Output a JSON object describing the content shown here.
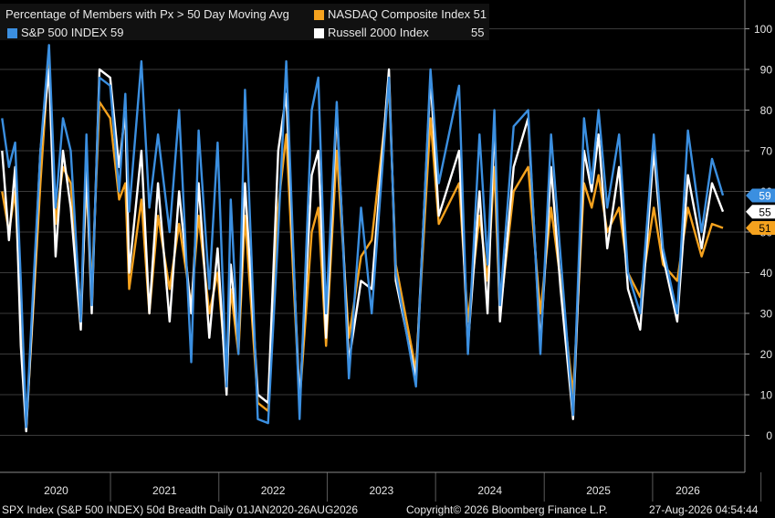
{
  "chart_data": {
    "type": "line",
    "title": "Percentage of Members with Px > 50 Day Moving Avg",
    "x_range": [
      "2020-01-01",
      "2026-08-26"
    ],
    "x_ticks": [
      "2020",
      "2021",
      "2022",
      "2023",
      "2024",
      "2025",
      "2026"
    ],
    "ylim": [
      -10,
      108
    ],
    "y_ticks": [
      "0",
      "10",
      "20",
      "30",
      "40",
      "50",
      "60",
      "70",
      "80",
      "90",
      "100"
    ],
    "grid": true,
    "legend_position": "top-left",
    "series": [
      {
        "name": "S&P 500 INDEX",
        "color": "#3b8fe0",
        "last_value": "59",
        "points": [
          [
            "2020-01-02",
            78
          ],
          [
            "2020-01-25",
            66
          ],
          [
            "2020-02-15",
            72
          ],
          [
            "2020-03-05",
            38
          ],
          [
            "2020-03-23",
            2
          ],
          [
            "2020-04-15",
            35
          ],
          [
            "2020-05-10",
            70
          ],
          [
            "2020-06-08",
            96
          ],
          [
            "2020-06-30",
            56
          ],
          [
            "2020-07-25",
            78
          ],
          [
            "2020-08-20",
            70
          ],
          [
            "2020-09-23",
            28
          ],
          [
            "2020-10-12",
            74
          ],
          [
            "2020-10-30",
            32
          ],
          [
            "2020-11-25",
            88
          ],
          [
            "2020-12-31",
            86
          ],
          [
            "2021-01-30",
            60
          ],
          [
            "2021-02-20",
            84
          ],
          [
            "2021-03-05",
            55
          ],
          [
            "2021-04-15",
            92
          ],
          [
            "2021-05-12",
            56
          ],
          [
            "2021-06-10",
            74
          ],
          [
            "2021-07-19",
            50
          ],
          [
            "2021-08-20",
            80
          ],
          [
            "2021-09-30",
            18
          ],
          [
            "2021-10-25",
            75
          ],
          [
            "2021-11-30",
            36
          ],
          [
            "2021-12-28",
            72
          ],
          [
            "2022-01-27",
            12
          ],
          [
            "2022-02-10",
            58
          ],
          [
            "2022-03-08",
            20
          ],
          [
            "2022-03-30",
            85
          ],
          [
            "2022-05-12",
            4
          ],
          [
            "2022-06-16",
            3
          ],
          [
            "2022-07-20",
            50
          ],
          [
            "2022-08-16",
            92
          ],
          [
            "2022-09-30",
            4
          ],
          [
            "2022-11-10",
            80
          ],
          [
            "2022-12-02",
            88
          ],
          [
            "2022-12-28",
            30
          ],
          [
            "2023-02-02",
            82
          ],
          [
            "2023-03-15",
            14
          ],
          [
            "2023-04-25",
            56
          ],
          [
            "2023-05-31",
            30
          ],
          [
            "2023-07-28",
            88
          ],
          [
            "2023-08-20",
            40
          ],
          [
            "2023-10-27",
            12
          ],
          [
            "2023-12-15",
            90
          ],
          [
            "2024-01-12",
            62
          ],
          [
            "2024-03-20",
            86
          ],
          [
            "2024-04-19",
            20
          ],
          [
            "2024-05-28",
            74
          ],
          [
            "2024-06-24",
            42
          ],
          [
            "2024-07-17",
            80
          ],
          [
            "2024-08-05",
            32
          ],
          [
            "2024-09-20",
            76
          ],
          [
            "2024-11-08",
            80
          ],
          [
            "2024-12-19",
            20
          ],
          [
            "2025-01-24",
            74
          ],
          [
            "2025-02-25",
            44
          ],
          [
            "2025-04-08",
            5
          ],
          [
            "2025-05-15",
            78
          ],
          [
            "2025-06-10",
            62
          ],
          [
            "2025-07-03",
            80
          ],
          [
            "2025-08-01",
            56
          ],
          [
            "2025-09-10",
            74
          ],
          [
            "2025-10-10",
            40
          ],
          [
            "2025-11-20",
            30
          ],
          [
            "2026-01-05",
            74
          ],
          [
            "2026-02-05",
            46
          ],
          [
            "2026-03-25",
            30
          ],
          [
            "2026-04-30",
            75
          ],
          [
            "2026-06-15",
            50
          ],
          [
            "2026-07-20",
            68
          ],
          [
            "2026-08-26",
            59
          ]
        ]
      },
      {
        "name": "NASDAQ Composite Index",
        "color": "#f5a21e",
        "last_value": "51",
        "points": [
          [
            "2020-01-02",
            60
          ],
          [
            "2020-01-25",
            50
          ],
          [
            "2020-02-15",
            60
          ],
          [
            "2020-03-05",
            30
          ],
          [
            "2020-03-23",
            2
          ],
          [
            "2020-04-15",
            30
          ],
          [
            "2020-05-10",
            62
          ],
          [
            "2020-06-08",
            94
          ],
          [
            "2020-06-30",
            52
          ],
          [
            "2020-07-25",
            66
          ],
          [
            "2020-08-20",
            62
          ],
          [
            "2020-09-23",
            30
          ],
          [
            "2020-10-12",
            62
          ],
          [
            "2020-10-30",
            36
          ],
          [
            "2020-11-25",
            82
          ],
          [
            "2020-12-31",
            78
          ],
          [
            "2021-01-30",
            58
          ],
          [
            "2021-02-20",
            62
          ],
          [
            "2021-03-05",
            36
          ],
          [
            "2021-04-15",
            58
          ],
          [
            "2021-05-12",
            30
          ],
          [
            "2021-06-10",
            54
          ],
          [
            "2021-07-19",
            36
          ],
          [
            "2021-08-20",
            52
          ],
          [
            "2021-09-30",
            32
          ],
          [
            "2021-10-25",
            54
          ],
          [
            "2021-11-30",
            30
          ],
          [
            "2021-12-28",
            40
          ],
          [
            "2022-01-27",
            14
          ],
          [
            "2022-02-10",
            36
          ],
          [
            "2022-03-08",
            20
          ],
          [
            "2022-03-30",
            54
          ],
          [
            "2022-05-12",
            8
          ],
          [
            "2022-06-16",
            6
          ],
          [
            "2022-07-20",
            56
          ],
          [
            "2022-08-16",
            74
          ],
          [
            "2022-09-30",
            8
          ],
          [
            "2022-11-10",
            50
          ],
          [
            "2022-12-02",
            56
          ],
          [
            "2022-12-28",
            22
          ],
          [
            "2023-02-02",
            70
          ],
          [
            "2023-03-15",
            24
          ],
          [
            "2023-04-25",
            44
          ],
          [
            "2023-05-31",
            48
          ],
          [
            "2023-07-28",
            86
          ],
          [
            "2023-08-20",
            42
          ],
          [
            "2023-10-27",
            16
          ],
          [
            "2023-12-15",
            78
          ],
          [
            "2024-01-12",
            52
          ],
          [
            "2024-03-20",
            62
          ],
          [
            "2024-04-19",
            28
          ],
          [
            "2024-05-28",
            54
          ],
          [
            "2024-06-24",
            38
          ],
          [
            "2024-07-17",
            66
          ],
          [
            "2024-08-05",
            30
          ],
          [
            "2024-09-20",
            60
          ],
          [
            "2024-11-08",
            66
          ],
          [
            "2024-12-19",
            30
          ],
          [
            "2025-01-24",
            56
          ],
          [
            "2025-02-25",
            38
          ],
          [
            "2025-04-08",
            10
          ],
          [
            "2025-05-15",
            62
          ],
          [
            "2025-06-10",
            56
          ],
          [
            "2025-07-03",
            64
          ],
          [
            "2025-08-01",
            50
          ],
          [
            "2025-09-10",
            56
          ],
          [
            "2025-10-10",
            40
          ],
          [
            "2025-11-20",
            34
          ],
          [
            "2026-01-05",
            56
          ],
          [
            "2026-02-05",
            42
          ],
          [
            "2026-03-25",
            38
          ],
          [
            "2026-04-30",
            56
          ],
          [
            "2026-06-15",
            44
          ],
          [
            "2026-07-20",
            52
          ],
          [
            "2026-08-26",
            51
          ]
        ]
      },
      {
        "name": "Russell 2000 Index",
        "color": "#ffffff",
        "last_value": "55",
        "points": [
          [
            "2020-01-02",
            70
          ],
          [
            "2020-01-25",
            48
          ],
          [
            "2020-02-15",
            66
          ],
          [
            "2020-03-05",
            22
          ],
          [
            "2020-03-23",
            1
          ],
          [
            "2020-04-15",
            32
          ],
          [
            "2020-05-10",
            70
          ],
          [
            "2020-06-08",
            90
          ],
          [
            "2020-06-30",
            44
          ],
          [
            "2020-07-25",
            70
          ],
          [
            "2020-08-20",
            56
          ],
          [
            "2020-09-23",
            26
          ],
          [
            "2020-10-12",
            66
          ],
          [
            "2020-10-30",
            30
          ],
          [
            "2020-11-25",
            90
          ],
          [
            "2020-12-31",
            88
          ],
          [
            "2021-01-30",
            66
          ],
          [
            "2021-02-20",
            80
          ],
          [
            "2021-03-05",
            40
          ],
          [
            "2021-04-15",
            70
          ],
          [
            "2021-05-12",
            30
          ],
          [
            "2021-06-10",
            62
          ],
          [
            "2021-07-19",
            28
          ],
          [
            "2021-08-20",
            60
          ],
          [
            "2021-09-30",
            30
          ],
          [
            "2021-10-25",
            62
          ],
          [
            "2021-11-30",
            24
          ],
          [
            "2021-12-28",
            46
          ],
          [
            "2022-01-27",
            10
          ],
          [
            "2022-02-10",
            42
          ],
          [
            "2022-03-08",
            22
          ],
          [
            "2022-03-30",
            62
          ],
          [
            "2022-05-12",
            10
          ],
          [
            "2022-06-16",
            8
          ],
          [
            "2022-07-20",
            70
          ],
          [
            "2022-08-16",
            84
          ],
          [
            "2022-09-30",
            8
          ],
          [
            "2022-11-10",
            64
          ],
          [
            "2022-12-02",
            70
          ],
          [
            "2022-12-28",
            24
          ],
          [
            "2023-02-02",
            80
          ],
          [
            "2023-03-15",
            18
          ],
          [
            "2023-04-25",
            38
          ],
          [
            "2023-05-31",
            36
          ],
          [
            "2023-07-28",
            90
          ],
          [
            "2023-08-20",
            38
          ],
          [
            "2023-10-27",
            14
          ],
          [
            "2023-12-15",
            88
          ],
          [
            "2024-01-12",
            54
          ],
          [
            "2024-03-20",
            70
          ],
          [
            "2024-04-19",
            22
          ],
          [
            "2024-05-28",
            60
          ],
          [
            "2024-06-24",
            30
          ],
          [
            "2024-07-17",
            78
          ],
          [
            "2024-08-05",
            28
          ],
          [
            "2024-09-20",
            66
          ],
          [
            "2024-11-08",
            78
          ],
          [
            "2024-12-19",
            22
          ],
          [
            "2025-01-24",
            66
          ],
          [
            "2025-02-25",
            36
          ],
          [
            "2025-04-08",
            4
          ],
          [
            "2025-05-15",
            70
          ],
          [
            "2025-06-10",
            60
          ],
          [
            "2025-07-03",
            74
          ],
          [
            "2025-08-01",
            46
          ],
          [
            "2025-09-10",
            66
          ],
          [
            "2025-10-10",
            36
          ],
          [
            "2025-11-20",
            26
          ],
          [
            "2026-01-05",
            70
          ],
          [
            "2026-02-05",
            44
          ],
          [
            "2026-03-25",
            28
          ],
          [
            "2026-04-30",
            64
          ],
          [
            "2026-06-15",
            46
          ],
          [
            "2026-07-20",
            62
          ],
          [
            "2026-08-26",
            55
          ]
        ]
      }
    ]
  },
  "legend": {
    "title": "Percentage of Members with Px > 50 Day Moving Avg",
    "items": [
      {
        "label": "S&P 500 INDEX 59",
        "color": "#3b8fe0"
      },
      {
        "label": "NASDAQ Composite Index 51",
        "color": "#f5a21e"
      },
      {
        "label": "Russell 2000 Index",
        "value": "55",
        "color": "#ffffff"
      }
    ]
  },
  "value_tags": [
    {
      "value": "59",
      "color": "#3b8fe0",
      "text_color": "#ffffff"
    },
    {
      "value": "55",
      "color": "#ffffff",
      "text_color": "#000000"
    },
    {
      "value": "51",
      "color": "#f5a21e",
      "text_color": "#000000"
    }
  ],
  "footer": {
    "left": "SPX Index (S&P 500 INDEX) 50d Breadth Daily 01JAN2020-26AUG2026",
    "center": "Copyright© 2026 Bloomberg Finance L.P.",
    "right": "27-Aug-2026 04:54:44"
  }
}
